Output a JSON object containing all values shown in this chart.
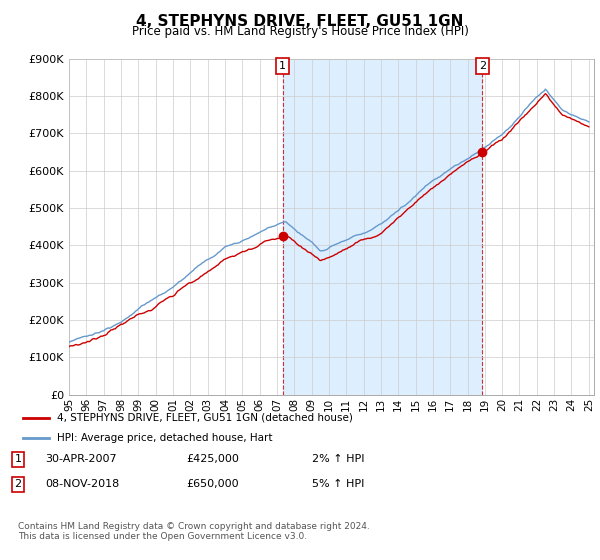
{
  "title": "4, STEPHYNS DRIVE, FLEET, GU51 1GN",
  "subtitle": "Price paid vs. HM Land Registry's House Price Index (HPI)",
  "ylim": [
    0,
    900000
  ],
  "xlim_start": 1995.0,
  "xlim_end": 2025.3,
  "legend_line1": "4, STEPHYNS DRIVE, FLEET, GU51 1GN (detached house)",
  "legend_line2": "HPI: Average price, detached house, Hart",
  "annotation1": {
    "num": "1",
    "date": "30-APR-2007",
    "price": "£425,000",
    "pct": "2% ↑ HPI"
  },
  "annotation2": {
    "num": "2",
    "date": "08-NOV-2018",
    "price": "£650,000",
    "pct": "5% ↑ HPI"
  },
  "footnote": "Contains HM Land Registry data © Crown copyright and database right 2024.\nThis data is licensed under the Open Government Licence v3.0.",
  "hpi_color": "#6699cc",
  "price_color": "#cc0000",
  "shade_color": "#ddeeff",
  "background_color": "#ffffff",
  "grid_color": "#cccccc",
  "purchase1_x": 2007.33,
  "purchase1_y": 425000,
  "purchase2_x": 2018.85,
  "purchase2_y": 650000
}
